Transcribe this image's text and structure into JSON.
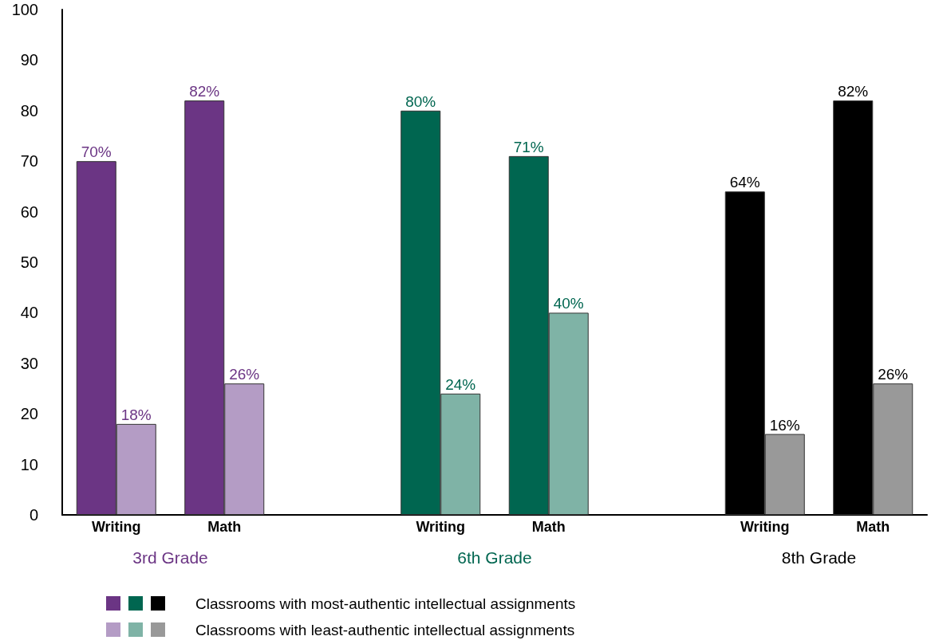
{
  "chart_data": {
    "type": "bar",
    "categories": [
      "Writing",
      "Math",
      null,
      "Writing",
      "Math",
      null,
      "Writing",
      "Math"
    ],
    "series": [
      {
        "name": "Classrooms with most-authentic intellectual assignments",
        "values": [
          70,
          82,
          null,
          80,
          71,
          null,
          64,
          82
        ],
        "value_labels": [
          "70%",
          "82%",
          null,
          "80%",
          "71%",
          null,
          "64%",
          "82%"
        ],
        "colors": [
          "#6b3584",
          "#6b3584",
          null,
          "#006650",
          "#006650",
          null,
          "#000000",
          "#000000"
        ]
      },
      {
        "name": "Classrooms with least-authentic intellectual assignments",
        "values": [
          18,
          26,
          null,
          24,
          40,
          null,
          16,
          26
        ],
        "value_labels": [
          "18%",
          "26%",
          null,
          "24%",
          "40%",
          null,
          "16%",
          "26%"
        ],
        "colors": [
          "#b49cc5",
          "#b49cc5",
          null,
          "#7fb3a6",
          "#7fb3a6",
          null,
          "#999999",
          "#999999"
        ]
      }
    ],
    "annotations": [
      "3rd Grade",
      "6th Grade",
      "8th Grade"
    ],
    "ylim": [
      0,
      100
    ],
    "yticks": [
      0,
      10,
      20,
      30,
      40,
      50,
      60,
      70,
      80,
      90,
      100
    ],
    "grid": false,
    "legend": "bottom"
  }
}
